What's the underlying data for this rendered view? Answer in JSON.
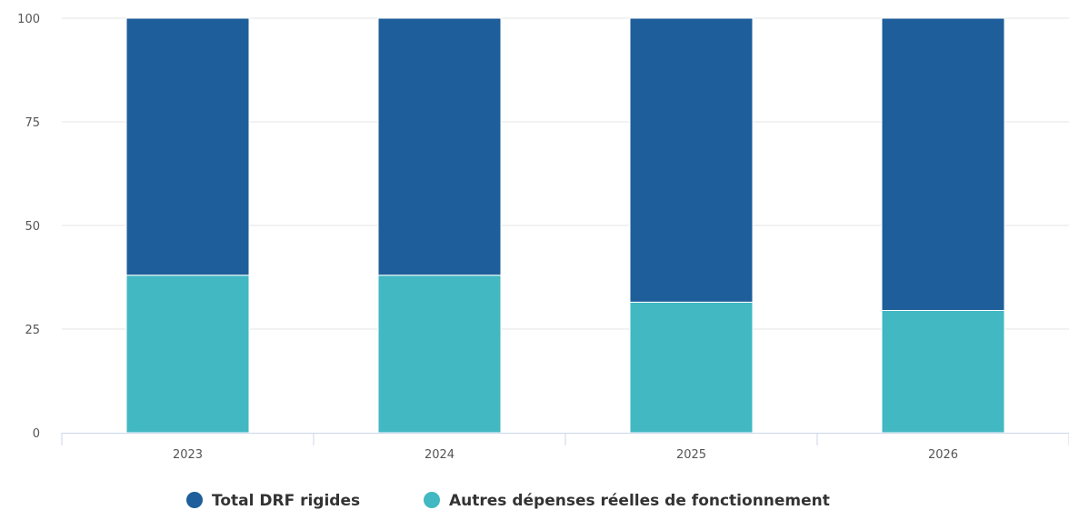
{
  "chart_data": {
    "type": "bar",
    "stacked": true,
    "categories": [
      "2023",
      "2024",
      "2025",
      "2026"
    ],
    "series": [
      {
        "name": "Autres dépenses réelles de fonctionnement",
        "color": "#41b8c2",
        "values": [
          38,
          38,
          31.5,
          29.5
        ]
      },
      {
        "name": "Total DRF rigides",
        "color": "#1e5e9a",
        "values": [
          62,
          62,
          68.5,
          70.5
        ]
      }
    ],
    "legend_order": [
      "Total DRF rigides",
      "Autres dépenses réelles de fonctionnement"
    ],
    "ylim": [
      0,
      100
    ],
    "yticks": [
      0,
      25,
      50,
      75,
      100
    ],
    "grid": true,
    "legend_position": "bottom-center",
    "title": "",
    "xlabel": "",
    "ylabel": ""
  }
}
